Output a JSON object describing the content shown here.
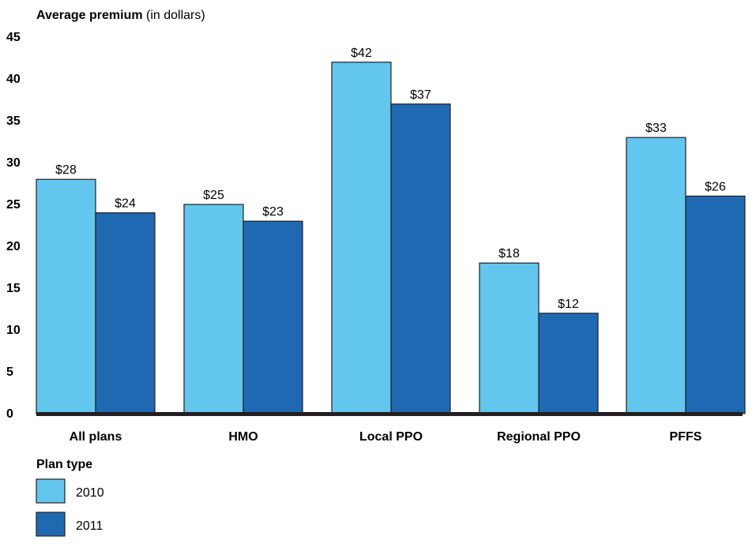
{
  "chart_data": {
    "type": "bar",
    "ylabel_bold": "Average premium",
    "ylabel_rest": " (in dollars)",
    "xlabel": "Plan type",
    "categories": [
      "All plans",
      "HMO",
      "Local PPO",
      "Regional PPO",
      "PFFS"
    ],
    "series": [
      {
        "name": "2010",
        "values": [
          28,
          25,
          42,
          18,
          33
        ],
        "labels": [
          "$28",
          "$25",
          "$42",
          "$18",
          "$33"
        ],
        "color": "#63c6ef"
      },
      {
        "name": "2011",
        "values": [
          24,
          23,
          37,
          12,
          26
        ],
        "labels": [
          "$24",
          "$23",
          "$37",
          "$12",
          "$26"
        ],
        "color": "#1f69b3"
      }
    ],
    "ylim": [
      0,
      45
    ],
    "yticks": [
      0,
      5,
      10,
      15,
      20,
      25,
      30,
      35,
      40,
      45
    ],
    "grid": false,
    "legend_position": "bottom-left"
  }
}
